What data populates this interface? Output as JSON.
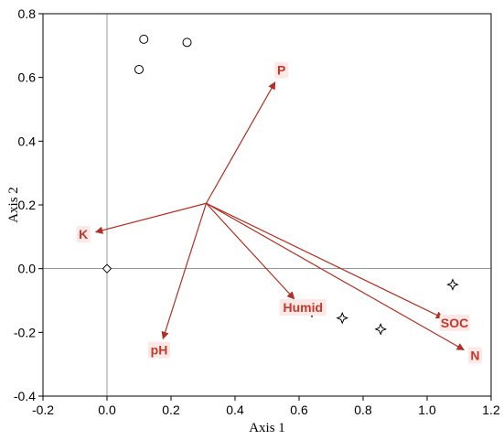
{
  "chart_data": {
    "type": "scatter",
    "title": "",
    "xlabel": "Axis 1",
    "ylabel": "Axis 2",
    "xlim": [
      -0.2,
      1.2
    ],
    "ylim": [
      -0.4,
      0.8
    ],
    "x_ticks": [
      "-0.2",
      "0.0",
      "0.2",
      "0.4",
      "0.6",
      "0.8",
      "1.0",
      "1.2"
    ],
    "y_ticks": [
      "-0.4",
      "-0.2",
      "0.0",
      "0.2",
      "0.4",
      "0.6",
      "0.8"
    ],
    "reference_lines": {
      "x": 0.0,
      "y": 0.0
    },
    "series": [
      {
        "marker": "circle",
        "points": [
          [
            0.115,
            0.72
          ],
          [
            0.25,
            0.71
          ],
          [
            0.1,
            0.625
          ]
        ]
      },
      {
        "marker": "diamond",
        "points": [
          [
            0.0,
            0.0
          ]
        ]
      },
      {
        "marker": "star4",
        "points": [
          [
            0.575,
            -0.115
          ],
          [
            0.64,
            -0.135
          ],
          [
            0.735,
            -0.155
          ],
          [
            0.855,
            -0.19
          ],
          [
            1.08,
            -0.05
          ]
        ]
      }
    ],
    "vector_origin": [
      0.31,
      0.205
    ],
    "vectors": [
      {
        "label": "P",
        "x": 0.525,
        "y": 0.585
      },
      {
        "label": "K",
        "x": -0.035,
        "y": 0.115
      },
      {
        "label": "pH",
        "x": 0.175,
        "y": -0.22
      },
      {
        "label": "Humid",
        "x": 0.585,
        "y": -0.095
      },
      {
        "label": "SOC",
        "x": 1.05,
        "y": -0.155
      },
      {
        "label": "N",
        "x": 1.115,
        "y": -0.255
      }
    ],
    "vector_color": "#b03025",
    "label_color": "#c0392b",
    "grid": false
  }
}
